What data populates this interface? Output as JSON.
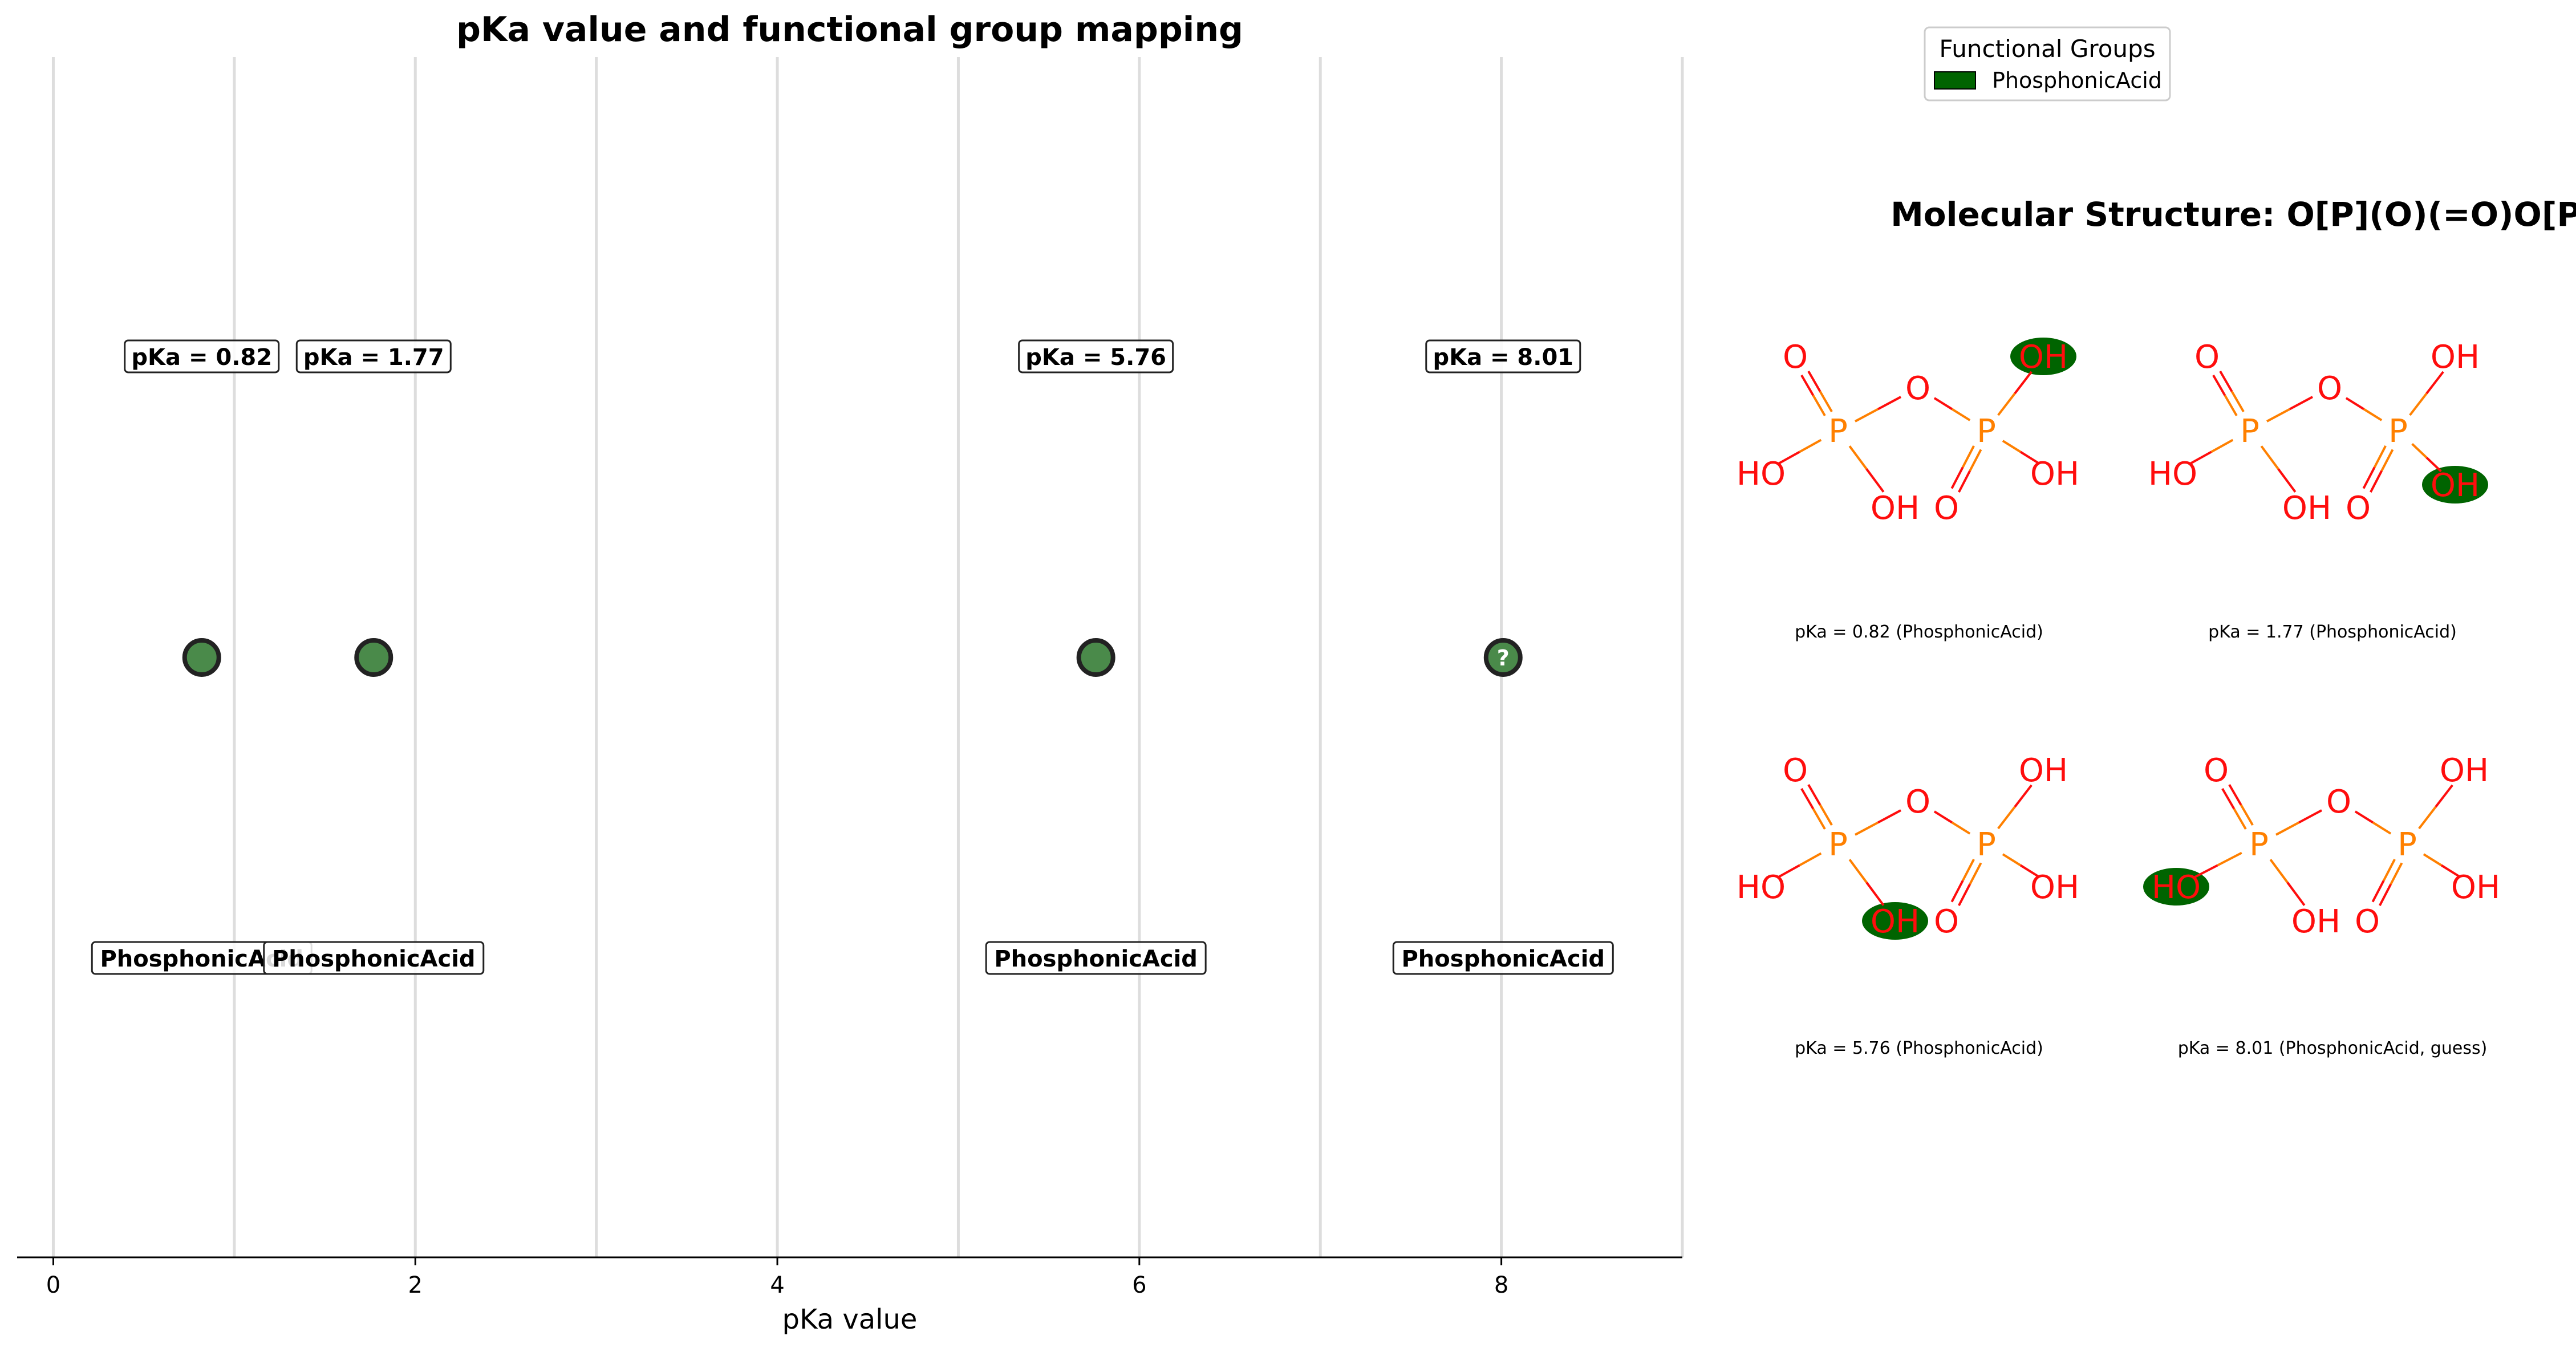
{
  "chart_data": {
    "type": "scatter",
    "title": "pKa value and functional group mapping",
    "xlabel": "pKa value",
    "xlim": [
      -0.2,
      9.0
    ],
    "xticks": [
      0,
      2,
      4,
      6,
      8
    ],
    "xtick_labels": [
      "0",
      "2",
      "4",
      "6",
      "8"
    ],
    "grid": "vertical gridlines at every integer",
    "points": [
      {
        "x": 0.82,
        "pka_label": "pKa = 0.82",
        "group_label": "PhosphonicAcid",
        "guess": false
      },
      {
        "x": 1.77,
        "pka_label": "pKa = 1.77",
        "group_label": "PhosphonicAcid",
        "guess": false
      },
      {
        "x": 5.76,
        "pka_label": "pKa = 5.76",
        "group_label": "PhosphonicAcid",
        "guess": false
      },
      {
        "x": 8.01,
        "pka_label": "pKa = 8.01",
        "group_label": "PhosphonicAcid",
        "guess": true,
        "marker_text": "?"
      }
    ],
    "point_color": "#4a8a4a",
    "point_edge_color": "#222222"
  },
  "legend": {
    "title": "Functional Groups",
    "items": [
      {
        "label": "PhosphonicAcid",
        "color": "#006400"
      }
    ],
    "placement": "top-right"
  },
  "structure_panel": {
    "title": "Molecular Structure: O[P](O)(=O)O[P](O)(O)=O",
    "highlight_color": "#006400",
    "atom_colors": {
      "O": "#ff0d0d",
      "P": "#ff8000"
    },
    "captions": [
      "pKa = 0.82 (PhosphonicAcid)",
      "pKa = 1.77 (PhosphonicAcid)",
      "pKa = 5.76 (PhosphonicAcid)",
      "pKa = 8.01 (PhosphonicAcid, guess)"
    ],
    "atoms": {
      "oxygen": "O",
      "phosphorus": "P",
      "hydroxyl": "OH",
      "hydroxyl_left": "HO"
    }
  }
}
